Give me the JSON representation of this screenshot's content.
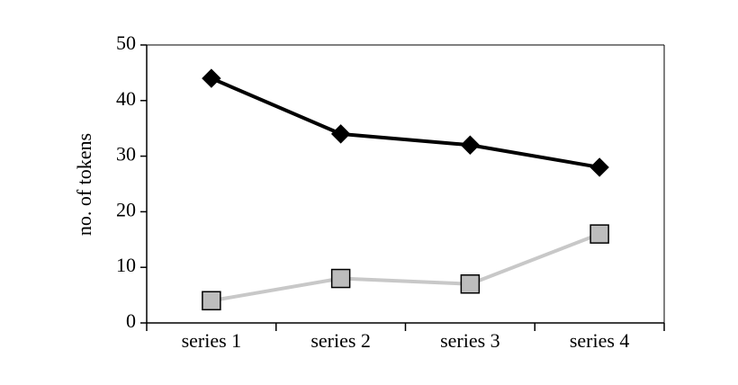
{
  "chart_data": {
    "type": "line",
    "y_label": "no. of tokens",
    "categories": [
      "series 1",
      "series 2",
      "series 3",
      "series 4"
    ],
    "series": [
      {
        "color": "#000000",
        "marker": "diamond",
        "values": [
          44,
          34,
          32,
          28
        ]
      },
      {
        "color": "#c8c8c8",
        "marker": "square",
        "values": [
          4,
          8,
          7,
          16
        ]
      }
    ],
    "ylim": [
      0,
      50
    ],
    "yticks": [
      0,
      10,
      20,
      30,
      40,
      50
    ]
  }
}
